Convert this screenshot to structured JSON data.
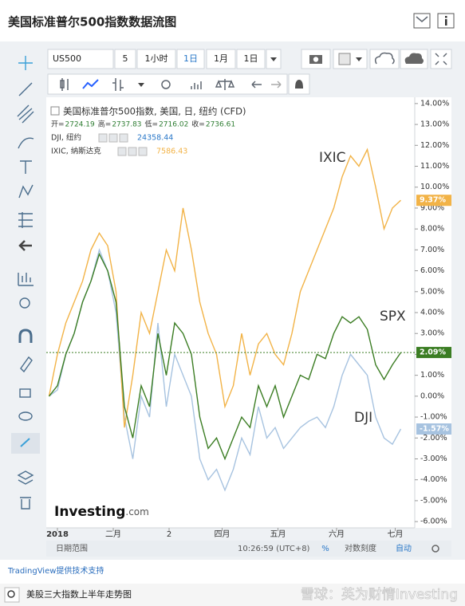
{
  "ui": {
    "header": {
      "title": "美国标准普尔500指数数据流图"
    },
    "toolbar": {
      "symbol": "US500",
      "interval": "5",
      "buttons": [
        "1小时",
        "1日",
        "1月",
        "1日"
      ]
    },
    "bottom_bar": {
      "range": "日期范围",
      "time": "10:26:59 (UTC+8)",
      "percent": "%",
      "log": "对数刻度",
      "auto": "自动"
    },
    "credit": "TradingView提供技术支持",
    "caption": "美股三大指数上半年走势图",
    "watermark": "雪球：英为财情Investing",
    "logo": "Investing",
    "logo_suffix": ".com"
  },
  "chart_data": {
    "type": "line",
    "legend_title": "美国标准普尔500指数, 美国, 日, 纽约 (CFD)",
    "ohlc": [
      {
        "label": "开=",
        "value": 2724.19
      },
      {
        "label": "高=",
        "value": 2737.83
      },
      {
        "label": "低=",
        "value": 2716.02
      },
      {
        "label": "收=",
        "value": 2736.61
      }
    ],
    "x": [
      0,
      3,
      6,
      9,
      12,
      15,
      18,
      21,
      24,
      27,
      30,
      33,
      36,
      39,
      42,
      45,
      48,
      51,
      54,
      57,
      60,
      63,
      66,
      69,
      72,
      75,
      78,
      81,
      84,
      87,
      90,
      93,
      96,
      99,
      102,
      105,
      108,
      111,
      114,
      117,
      120,
      123,
      126
    ],
    "xlim": [
      -1,
      131
    ],
    "xticks": [
      {
        "value": 3,
        "label": "2018"
      },
      {
        "value": 23,
        "label": "二月"
      },
      {
        "value": 43,
        "label": "2"
      },
      {
        "value": 62,
        "label": "四月"
      },
      {
        "value": 82,
        "label": "五月"
      },
      {
        "value": 103,
        "label": "六月"
      },
      {
        "value": 124,
        "label": "七月"
      }
    ],
    "ylim": [
      -6.3,
      14.3
    ],
    "yticks": [
      {
        "value": 14,
        "label": "14.00%"
      },
      {
        "value": 13,
        "label": "13.00%"
      },
      {
        "value": 12,
        "label": "12.00%"
      },
      {
        "value": 11,
        "label": "11.00%"
      },
      {
        "value": 10,
        "label": "10.00%"
      },
      {
        "value": 9,
        "label": "9.00%"
      },
      {
        "value": 8,
        "label": "8.00%"
      },
      {
        "value": 7,
        "label": "7.00%"
      },
      {
        "value": 6,
        "label": "6.00%"
      },
      {
        "value": 5,
        "label": "5.00%"
      },
      {
        "value": 4,
        "label": "4.00%"
      },
      {
        "value": 3,
        "label": "3.00%"
      },
      {
        "value": 2,
        "label": "2.00%"
      },
      {
        "value": 1,
        "label": "1.00%"
      },
      {
        "value": 0,
        "label": "0.00%"
      },
      {
        "value": -1,
        "label": "-1.00%"
      },
      {
        "value": -2,
        "label": "-2.00%"
      },
      {
        "value": -3,
        "label": "-3.00%"
      },
      {
        "value": -4,
        "label": "-4.00%"
      },
      {
        "value": -5,
        "label": "-5.00%"
      },
      {
        "value": -6,
        "label": "-6.00%"
      }
    ],
    "grid": false,
    "series": [
      {
        "name": "IXIC",
        "legend_name": "IXIC, 纳斯达克",
        "legend_value": 7586.43,
        "color": "#f2b347",
        "last_label": "9.37%",
        "values": [
          0,
          2,
          3.5,
          4.5,
          5.5,
          7,
          7.8,
          7.2,
          5,
          -1.5,
          1,
          4,
          3,
          5,
          7,
          6,
          9,
          7,
          4.5,
          3,
          2,
          -0.5,
          0.5,
          3,
          1,
          2.5,
          3,
          2,
          1.5,
          3,
          5,
          6,
          7,
          8,
          9,
          10.5,
          11.5,
          11,
          11.8,
          10,
          8,
          9,
          9.37
        ]
      },
      {
        "name": "SPX",
        "legend_name": null,
        "color": "#3b7d23",
        "last_label": "2.09%",
        "values": [
          0,
          0.5,
          2,
          3,
          4.5,
          5.5,
          6.8,
          6,
          4.5,
          -0.5,
          -2,
          0.5,
          -0.5,
          3,
          1,
          3.5,
          3,
          2,
          -1,
          -2.5,
          -2,
          -3,
          -2,
          -1,
          -1.5,
          0.5,
          -0.5,
          0.5,
          -1,
          0,
          1,
          0.8,
          2,
          1.8,
          3,
          3.8,
          3.5,
          3.8,
          3.2,
          1.5,
          0.8,
          1.5,
          2.09
        ]
      },
      {
        "name": "DJI",
        "legend_name": "DJI, 纽约",
        "legend_value": 24358.44,
        "color": "#a7c3e0",
        "last_label": "-1.57%",
        "values": [
          0,
          0.3,
          2,
          3,
          4.5,
          5.5,
          7,
          6,
          4,
          -1,
          -3,
          0,
          -1,
          3.5,
          -0.5,
          2,
          1,
          0,
          -3,
          -4,
          -3.5,
          -4.5,
          -3.5,
          -2,
          -2.8,
          -0.5,
          -2,
          -1.5,
          -2.5,
          -2,
          -1.5,
          -1.2,
          -1,
          -1.5,
          -0.5,
          1,
          2,
          1.5,
          1,
          -1,
          -2,
          -2.3,
          -1.57
        ]
      }
    ]
  }
}
